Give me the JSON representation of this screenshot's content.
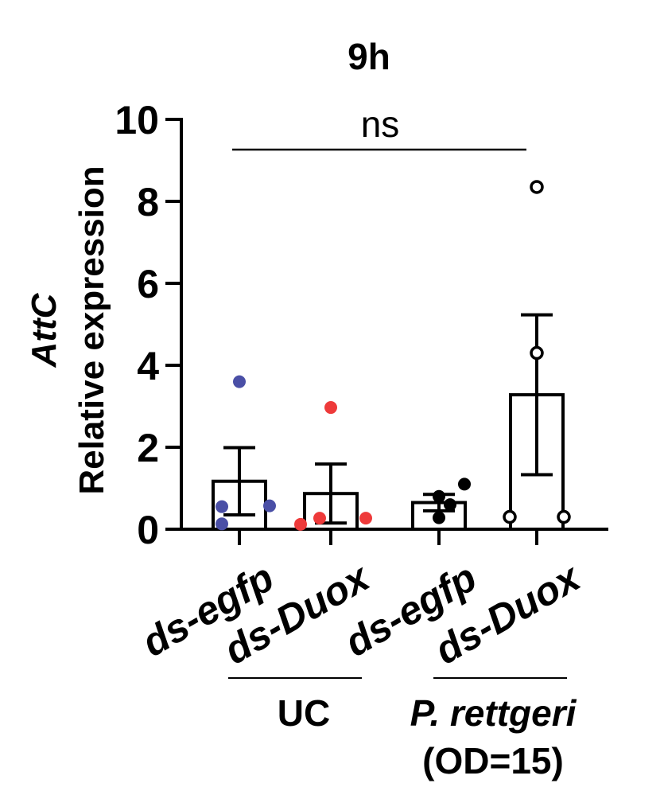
{
  "chart_data": {
    "type": "bar",
    "title": "9h",
    "ylabel_italic": "AttC",
    "ylabel": "Relative expression",
    "ylim": [
      0,
      10
    ],
    "yticks": [
      "0",
      "2",
      "4",
      "6",
      "8",
      "10"
    ],
    "categories": [
      "ds-egfp",
      "ds-Duox",
      "ds-egfp",
      "ds-Duox"
    ],
    "means": [
      1.17,
      0.87,
      0.65,
      3.28
    ],
    "sem": [
      0.82,
      0.72,
      0.2,
      1.95
    ],
    "points": [
      [
        3.6,
        0.55,
        0.57,
        0.13
      ],
      [
        2.97,
        0.27,
        0.27,
        0.12
      ],
      [
        0.28,
        0.8,
        0.6,
        1.1
      ],
      [
        8.35,
        4.3,
        0.3,
        0.3
      ]
    ],
    "point_style": [
      "filled",
      "filled",
      "filled",
      "open"
    ],
    "point_colors": [
      "#4a4fa6",
      "#ee3a3a",
      "#000000",
      "#000000"
    ],
    "groups": [
      {
        "label": "UC",
        "italic": false,
        "categories": [
          0,
          1
        ]
      },
      {
        "label": "P. rettgeri",
        "italic": true,
        "sublabel": "(OD=15)",
        "categories": [
          2,
          3
        ]
      }
    ],
    "annotation": {
      "text": "ns",
      "from": 0,
      "to": 3
    }
  }
}
